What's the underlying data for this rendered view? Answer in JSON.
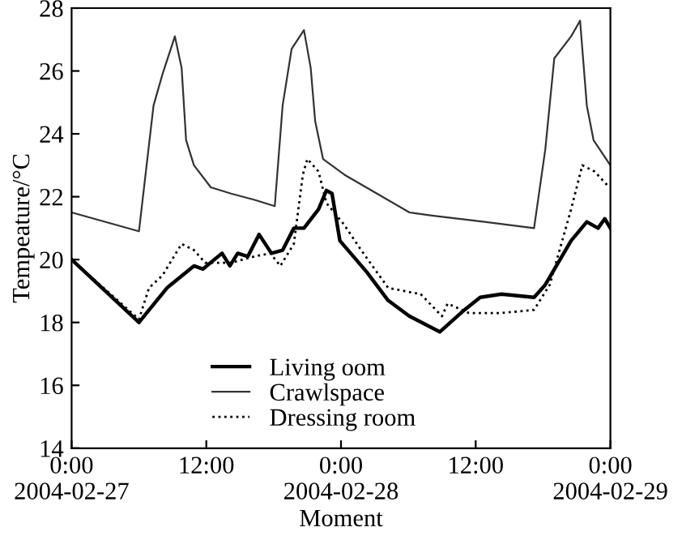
{
  "chart_data": {
    "type": "line",
    "xlabel": "Moment",
    "ylabel": "Tempeature/°C",
    "xlim": [
      "2004-02-27T00:00",
      "2004-02-29T00:00"
    ],
    "xticks": [
      {
        "value": "2004-02-27T00:00",
        "label": "0:00\n2004-02-27"
      },
      {
        "value": "2004-02-27T12:00",
        "label": "12:00"
      },
      {
        "value": "2004-02-28T00:00",
        "label": "0:00\n2004-02-28"
      },
      {
        "value": "2004-02-28T12:00",
        "label": "12:00"
      },
      {
        "value": "2004-02-29T00:00",
        "label": "0:00\n2004-02-29"
      }
    ],
    "ylim": [
      14,
      28
    ],
    "yticks": [
      14,
      16,
      18,
      20,
      22,
      24,
      26,
      28
    ],
    "grid": false,
    "legend": "bottom",
    "series": [
      {
        "name": "Living oom",
        "color": "#000000",
        "line_style": "solid",
        "x": [
          "2004-02-27T00:00",
          "2004-02-27T06:00",
          "2004-02-27T08:30",
          "2004-02-27T10:54",
          "2004-02-27T11:42",
          "2004-02-27T13:24",
          "2004-02-27T14:06",
          "2004-02-27T14:48",
          "2004-02-27T15:42",
          "2004-02-27T16:42",
          "2004-02-27T17:48",
          "2004-02-27T18:48",
          "2004-02-27T19:48",
          "2004-02-27T20:42",
          "2004-02-27T22:00",
          "2004-02-27T22:42",
          "2004-02-27T23:12",
          "2004-02-27T23:54",
          "2004-02-28T02:18",
          "2004-02-28T04:12",
          "2004-02-28T06:06",
          "2004-02-28T08:48",
          "2004-02-28T11:00",
          "2004-02-28T12:24",
          "2004-02-28T14:18",
          "2004-02-28T17:12",
          "2004-02-28T18:12",
          "2004-02-28T20:30",
          "2004-02-28T21:54",
          "2004-02-28T22:54",
          "2004-02-28T23:30",
          "2004-02-29T00:00"
        ],
        "values": [
          20.0,
          18.0,
          19.1,
          19.8,
          19.7,
          20.2,
          19.8,
          20.2,
          20.1,
          20.8,
          20.2,
          20.3,
          21.0,
          21.0,
          21.6,
          22.2,
          22.1,
          20.6,
          19.6,
          18.7,
          18.2,
          17.7,
          18.4,
          18.8,
          18.9,
          18.8,
          19.2,
          20.6,
          21.2,
          21.0,
          21.3,
          21.0
        ]
      },
      {
        "name": "Crawlspace",
        "color": "#333333",
        "line_style": "solid",
        "x": [
          "2004-02-27T00:00",
          "2004-02-27T06:00",
          "2004-02-27T07:18",
          "2004-02-27T08:06",
          "2004-02-27T09:12",
          "2004-02-27T09:48",
          "2004-02-27T10:12",
          "2004-02-27T10:54",
          "2004-02-27T12:24",
          "2004-02-27T14:12",
          "2004-02-27T16:18",
          "2004-02-27T18:06",
          "2004-02-27T18:48",
          "2004-02-27T19:36",
          "2004-02-27T20:42",
          "2004-02-27T21:18",
          "2004-02-27T21:42",
          "2004-02-27T22:24",
          "2004-02-28T00:18",
          "2004-02-28T03:12",
          "2004-02-28T06:06",
          "2004-02-28T08:06",
          "2004-02-28T12:48",
          "2004-02-28T17:12",
          "2004-02-28T18:12",
          "2004-02-28T19:00",
          "2004-02-28T20:30",
          "2004-02-28T21:18",
          "2004-02-28T21:54",
          "2004-02-28T22:30",
          "2004-02-29T00:00"
        ],
        "values": [
          21.5,
          20.9,
          24.9,
          25.9,
          27.1,
          26.1,
          23.8,
          23.0,
          22.3,
          22.1,
          21.9,
          21.7,
          24.9,
          26.7,
          27.3,
          26.1,
          24.4,
          23.2,
          22.7,
          22.1,
          21.5,
          21.4,
          21.2,
          21.0,
          23.5,
          26.4,
          27.1,
          27.6,
          24.9,
          23.8,
          23.0
        ]
      },
      {
        "name": "Dressing room",
        "color": "#000000",
        "line_style": "dotted",
        "x": [
          "2004-02-27T00:00",
          "2004-02-27T06:00",
          "2004-02-27T06:54",
          "2004-02-27T08:06",
          "2004-02-27T09:48",
          "2004-02-27T10:54",
          "2004-02-27T11:54",
          "2004-02-27T14:12",
          "2004-02-27T16:18",
          "2004-02-27T17:42",
          "2004-02-27T18:36",
          "2004-02-27T19:48",
          "2004-02-27T20:36",
          "2004-02-27T21:00",
          "2004-02-27T22:00",
          "2004-02-27T22:42",
          "2004-02-28T00:18",
          "2004-02-28T01:48",
          "2004-02-28T04:12",
          "2004-02-28T07:06",
          "2004-02-28T09:00",
          "2004-02-28T09:30",
          "2004-02-28T11:24",
          "2004-02-28T14:18",
          "2004-02-28T17:12",
          "2004-02-28T18:36",
          "2004-02-28T20:30",
          "2004-02-28T21:30",
          "2004-02-28T22:36",
          "2004-02-28T23:54"
        ],
        "values": [
          20.0,
          18.1,
          19.1,
          19.5,
          20.5,
          20.3,
          19.9,
          19.9,
          20.1,
          20.2,
          19.8,
          20.5,
          22.7,
          23.2,
          22.8,
          21.8,
          21.1,
          20.3,
          19.1,
          18.9,
          18.2,
          18.6,
          18.3,
          18.3,
          18.4,
          19.2,
          21.6,
          23.0,
          22.8,
          22.3
        ]
      }
    ]
  }
}
